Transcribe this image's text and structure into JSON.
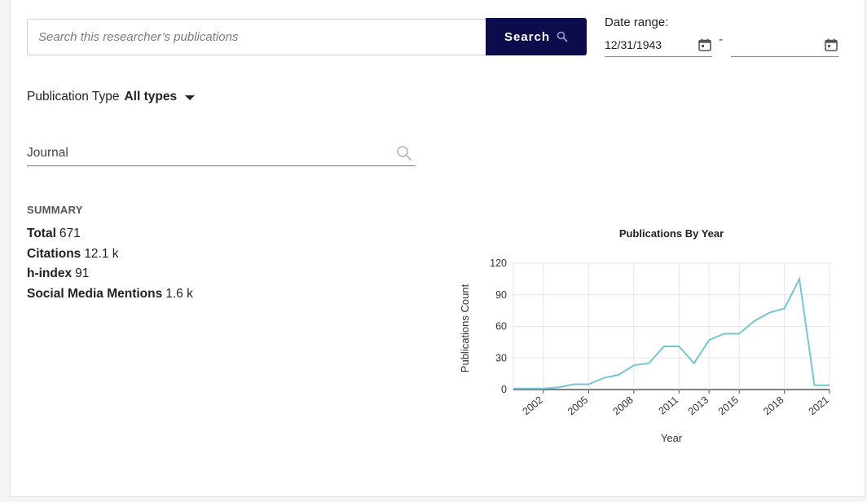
{
  "search": {
    "placeholder": "Search this researcher’s publications",
    "button_label": "Search"
  },
  "date_range": {
    "label": "Date range:",
    "from": "12/31/1943",
    "separator": "-",
    "to": ""
  },
  "publication_type": {
    "label": "Publication Type",
    "value": "All types"
  },
  "journal": {
    "placeholder": "Journal"
  },
  "summary": {
    "title": "SUMMARY",
    "items": [
      {
        "label": "Total",
        "value": "671"
      },
      {
        "label": "Citations",
        "value": "12.1 k"
      },
      {
        "label": "h-index",
        "value": "91"
      },
      {
        "label": "Social Media Mentions",
        "value": "1.6 k"
      }
    ]
  },
  "colors": {
    "accent": "#0c0c4d",
    "line": "#72c7d4"
  },
  "chart_data": {
    "type": "line",
    "title": "Publications By Year",
    "xlabel": "Year",
    "ylabel": "Publications Count",
    "ylim": [
      0,
      120
    ],
    "yticks": [
      0,
      30,
      60,
      90,
      120
    ],
    "xticks": [
      "2002",
      "2005",
      "2008",
      "2011",
      "2013",
      "2015",
      "2018",
      "2021"
    ],
    "grid": true,
    "x": [
      2000,
      2001,
      2002,
      2003,
      2004,
      2005,
      2006,
      2007,
      2008,
      2009,
      2010,
      2011,
      2012,
      2013,
      2014,
      2015,
      2016,
      2017,
      2018,
      2019,
      2020,
      2021
    ],
    "values": [
      1,
      1,
      1,
      2,
      5,
      5,
      11,
      14,
      23,
      25,
      41,
      41,
      25,
      47,
      53,
      53,
      65,
      73,
      77,
      105,
      4,
      4
    ]
  }
}
